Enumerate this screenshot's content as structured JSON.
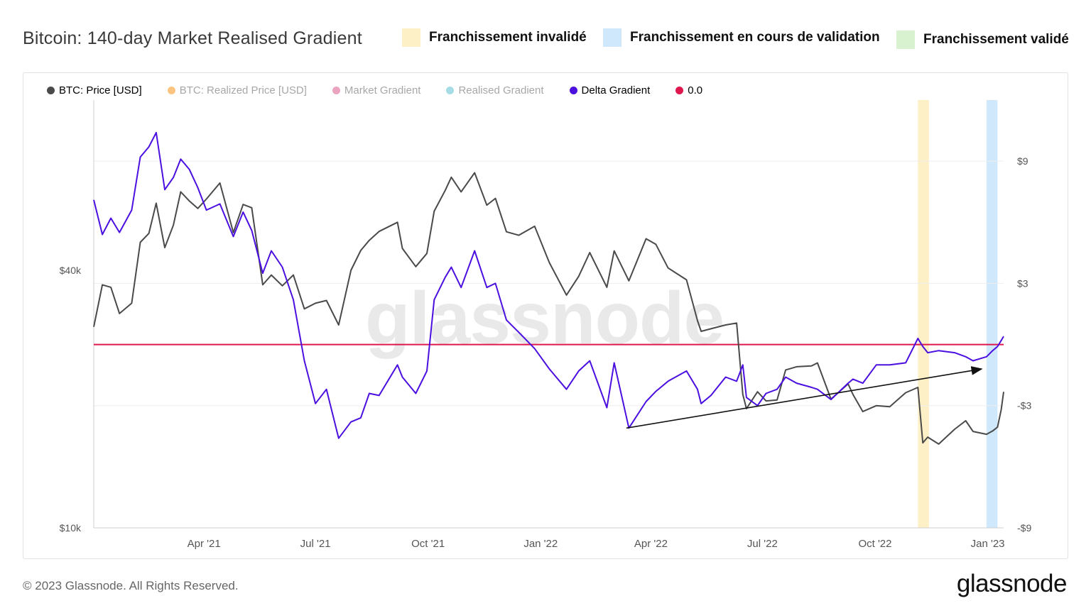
{
  "header": {
    "title": "Bitcoin: 140-day Market Realised Gradient",
    "annotation_legend": [
      {
        "label": "Franchissement invalidé",
        "color": "#fdf0c6"
      },
      {
        "label": "Franchissement en cours de validation",
        "color": "#cfe8fb"
      },
      {
        "label": "Franchissement validé",
        "color": "#d8f2d0"
      }
    ]
  },
  "legend": [
    {
      "label": "BTC: Price [USD]",
      "color": "#4a4a4a",
      "active": true
    },
    {
      "label": "BTC: Realized Price [USD]",
      "color": "#f7931a",
      "active": false
    },
    {
      "label": "Market Gradient",
      "color": "#d9598c",
      "active": false
    },
    {
      "label": "Realised Gradient",
      "color": "#5bc0d0",
      "active": false
    },
    {
      "label": "Delta Gradient",
      "color": "#4b10e0",
      "active": true
    },
    {
      "label": "0.0",
      "color": "#e0174d",
      "active": true
    }
  ],
  "watermark": "glassnode",
  "footer": {
    "copyright": "© 2023 Glassnode. All Rights Reserved.",
    "logo": "glassnode"
  },
  "chart_data": {
    "type": "line",
    "title": "Bitcoin: 140-day Market Realised Gradient",
    "x_ticks": [
      "Apr '21",
      "Jul '21",
      "Oct '21",
      "Jan '22",
      "Apr '22",
      "Jul '22",
      "Oct '22",
      "Jan '23"
    ],
    "y_left": {
      "label": "",
      "scale": "log",
      "ticks": [
        "$10k",
        "$40k"
      ],
      "range": [
        10000,
        100000
      ]
    },
    "y_right": {
      "label": "",
      "ticks": [
        "$9",
        "$3",
        "-$3",
        "-$9"
      ],
      "range": [
        -9,
        12
      ]
    },
    "zero_line": {
      "value": 0,
      "color": "#e0174d"
    },
    "highlight_bands": [
      {
        "type": "Franchissement invalidé",
        "start": "2022-11-05",
        "end": "2022-11-14",
        "color": "#fdf0c6"
      },
      {
        "type": "Franchissement en cours de validation",
        "start": "2022-12-31",
        "end": "2023-01-09",
        "color": "#cfe8fb"
      }
    ],
    "trend_arrows": [
      {
        "from": {
          "x": "2022-03-12",
          "y": -4.1
        },
        "to": {
          "x": "2022-12-27",
          "y": -1.2
        }
      }
    ],
    "series": [
      {
        "name": "BTC: Price [USD]",
        "axis": "left",
        "color": "#4a4a4a",
        "points": [
          [
            "2021-01-01",
            29500
          ],
          [
            "2021-01-08",
            37000
          ],
          [
            "2021-01-15",
            36500
          ],
          [
            "2021-01-22",
            31700
          ],
          [
            "2021-02-01",
            33500
          ],
          [
            "2021-02-08",
            46500
          ],
          [
            "2021-02-15",
            48800
          ],
          [
            "2021-02-21",
            57400
          ],
          [
            "2021-02-28",
            45200
          ],
          [
            "2021-03-07",
            51000
          ],
          [
            "2021-03-13",
            61000
          ],
          [
            "2021-03-20",
            58100
          ],
          [
            "2021-03-27",
            55800
          ],
          [
            "2021-04-03",
            58700
          ],
          [
            "2021-04-14",
            64000
          ],
          [
            "2021-04-25",
            49000
          ],
          [
            "2021-05-03",
            57000
          ],
          [
            "2021-05-10",
            56000
          ],
          [
            "2021-05-19",
            37000
          ],
          [
            "2021-05-26",
            39000
          ],
          [
            "2021-06-04",
            36800
          ],
          [
            "2021-06-13",
            39000
          ],
          [
            "2021-06-22",
            32500
          ],
          [
            "2021-07-01",
            33500
          ],
          [
            "2021-07-10",
            34000
          ],
          [
            "2021-07-20",
            29800
          ],
          [
            "2021-07-30",
            40000
          ],
          [
            "2021-08-07",
            44500
          ],
          [
            "2021-08-14",
            47000
          ],
          [
            "2021-08-22",
            49300
          ],
          [
            "2021-09-06",
            51800
          ],
          [
            "2021-09-10",
            45000
          ],
          [
            "2021-09-21",
            40800
          ],
          [
            "2021-09-30",
            43800
          ],
          [
            "2021-10-06",
            55000
          ],
          [
            "2021-10-15",
            61500
          ],
          [
            "2021-10-20",
            66000
          ],
          [
            "2021-10-28",
            61000
          ],
          [
            "2021-11-08",
            67600
          ],
          [
            "2021-11-18",
            56800
          ],
          [
            "2021-11-25",
            58900
          ],
          [
            "2021-12-04",
            49200
          ],
          [
            "2021-12-14",
            48300
          ],
          [
            "2021-12-27",
            50700
          ],
          [
            "2022-01-08",
            41700
          ],
          [
            "2022-01-22",
            35000
          ],
          [
            "2022-02-01",
            38700
          ],
          [
            "2022-02-10",
            44000
          ],
          [
            "2022-02-24",
            36500
          ],
          [
            "2022-03-02",
            44400
          ],
          [
            "2022-03-14",
            37800
          ],
          [
            "2022-03-28",
            47400
          ],
          [
            "2022-04-05",
            46000
          ],
          [
            "2022-04-15",
            40500
          ],
          [
            "2022-04-30",
            38000
          ],
          [
            "2022-05-09",
            30500
          ],
          [
            "2022-05-12",
            28800
          ],
          [
            "2022-05-20",
            29200
          ],
          [
            "2022-06-01",
            29800
          ],
          [
            "2022-06-10",
            30100
          ],
          [
            "2022-06-15",
            20500
          ],
          [
            "2022-06-18",
            19000
          ],
          [
            "2022-06-27",
            20800
          ],
          [
            "2022-07-04",
            19800
          ],
          [
            "2022-07-13",
            19900
          ],
          [
            "2022-07-20",
            23400
          ],
          [
            "2022-07-29",
            23800
          ],
          [
            "2022-08-10",
            23900
          ],
          [
            "2022-08-15",
            24300
          ],
          [
            "2022-08-26",
            20000
          ],
          [
            "2022-09-09",
            21700
          ],
          [
            "2022-09-13",
            20500
          ],
          [
            "2022-09-21",
            18700
          ],
          [
            "2022-10-02",
            19300
          ],
          [
            "2022-10-13",
            19200
          ],
          [
            "2022-10-26",
            20700
          ],
          [
            "2022-11-05",
            21300
          ],
          [
            "2022-11-09",
            15800
          ],
          [
            "2022-11-13",
            16300
          ],
          [
            "2022-11-22",
            15700
          ],
          [
            "2022-12-05",
            17000
          ],
          [
            "2022-12-14",
            17800
          ],
          [
            "2022-12-20",
            16800
          ],
          [
            "2022-12-31",
            16550
          ],
          [
            "2023-01-05",
            16850
          ],
          [
            "2023-01-09",
            17200
          ],
          [
            "2023-01-12",
            18900
          ],
          [
            "2023-01-14",
            20800
          ]
        ]
      },
      {
        "name": "Delta Gradient",
        "axis": "right",
        "color": "#4b10e0",
        "points": [
          [
            "2021-01-01",
            7.1
          ],
          [
            "2021-01-08",
            5.4
          ],
          [
            "2021-01-15",
            6.2
          ],
          [
            "2021-01-22",
            5.5
          ],
          [
            "2021-02-01",
            6.6
          ],
          [
            "2021-02-08",
            9.2
          ],
          [
            "2021-02-15",
            9.7
          ],
          [
            "2021-02-21",
            10.4
          ],
          [
            "2021-02-28",
            7.6
          ],
          [
            "2021-03-07",
            8.2
          ],
          [
            "2021-03-13",
            9.1
          ],
          [
            "2021-03-20",
            8.6
          ],
          [
            "2021-03-27",
            7.7
          ],
          [
            "2021-04-03",
            6.6
          ],
          [
            "2021-04-14",
            6.9
          ],
          [
            "2021-04-25",
            5.3
          ],
          [
            "2021-05-03",
            6.5
          ],
          [
            "2021-05-10",
            5.6
          ],
          [
            "2021-05-19",
            3.5
          ],
          [
            "2021-05-26",
            4.6
          ],
          [
            "2021-06-04",
            3.8
          ],
          [
            "2021-06-13",
            2.2
          ],
          [
            "2021-06-22",
            -0.8
          ],
          [
            "2021-07-01",
            -2.9
          ],
          [
            "2021-07-10",
            -2.2
          ],
          [
            "2021-07-20",
            -4.6
          ],
          [
            "2021-07-30",
            -3.8
          ],
          [
            "2021-08-07",
            -3.6
          ],
          [
            "2021-08-14",
            -2.4
          ],
          [
            "2021-08-22",
            -2.5
          ],
          [
            "2021-09-06",
            -1.0
          ],
          [
            "2021-09-10",
            -1.6
          ],
          [
            "2021-09-21",
            -2.4
          ],
          [
            "2021-09-30",
            -1.3
          ],
          [
            "2021-10-06",
            2.2
          ],
          [
            "2021-10-15",
            3.3
          ],
          [
            "2021-10-20",
            3.8
          ],
          [
            "2021-10-28",
            2.8
          ],
          [
            "2021-11-08",
            4.6
          ],
          [
            "2021-11-18",
            2.8
          ],
          [
            "2021-11-25",
            3.0
          ],
          [
            "2021-12-04",
            1.2
          ],
          [
            "2021-12-14",
            0.6
          ],
          [
            "2021-12-27",
            -0.2
          ],
          [
            "2022-01-08",
            -1.2
          ],
          [
            "2022-01-22",
            -2.2
          ],
          [
            "2022-02-01",
            -1.3
          ],
          [
            "2022-02-10",
            -0.8
          ],
          [
            "2022-02-24",
            -3.1
          ],
          [
            "2022-03-02",
            -0.9
          ],
          [
            "2022-03-14",
            -4.1
          ],
          [
            "2022-03-28",
            -2.8
          ],
          [
            "2022-04-05",
            -2.3
          ],
          [
            "2022-04-15",
            -1.8
          ],
          [
            "2022-04-30",
            -1.3
          ],
          [
            "2022-05-09",
            -2.2
          ],
          [
            "2022-05-12",
            -2.9
          ],
          [
            "2022-05-20",
            -2.5
          ],
          [
            "2022-06-01",
            -1.6
          ],
          [
            "2022-06-10",
            -1.8
          ],
          [
            "2022-06-15",
            -1.0
          ],
          [
            "2022-06-18",
            -2.6
          ],
          [
            "2022-06-27",
            -3.0
          ],
          [
            "2022-07-04",
            -2.4
          ],
          [
            "2022-07-13",
            -2.2
          ],
          [
            "2022-07-20",
            -1.6
          ],
          [
            "2022-07-29",
            -1.9
          ],
          [
            "2022-08-10",
            -2.1
          ],
          [
            "2022-08-15",
            -2.2
          ],
          [
            "2022-08-26",
            -2.7
          ],
          [
            "2022-09-09",
            -1.9
          ],
          [
            "2022-09-13",
            -1.7
          ],
          [
            "2022-09-21",
            -1.9
          ],
          [
            "2022-10-02",
            -1.0
          ],
          [
            "2022-10-13",
            -1.0
          ],
          [
            "2022-10-26",
            -0.9
          ],
          [
            "2022-11-05",
            0.3
          ],
          [
            "2022-11-09",
            -0.1
          ],
          [
            "2022-11-13",
            -0.4
          ],
          [
            "2022-11-22",
            -0.3
          ],
          [
            "2022-12-05",
            -0.4
          ],
          [
            "2022-12-14",
            -0.6
          ],
          [
            "2022-12-20",
            -0.8
          ],
          [
            "2022-12-31",
            -0.6
          ],
          [
            "2023-01-05",
            -0.3
          ],
          [
            "2023-01-09",
            -0.1
          ],
          [
            "2023-01-12",
            0.2
          ],
          [
            "2023-01-14",
            0.4
          ]
        ]
      }
    ]
  }
}
